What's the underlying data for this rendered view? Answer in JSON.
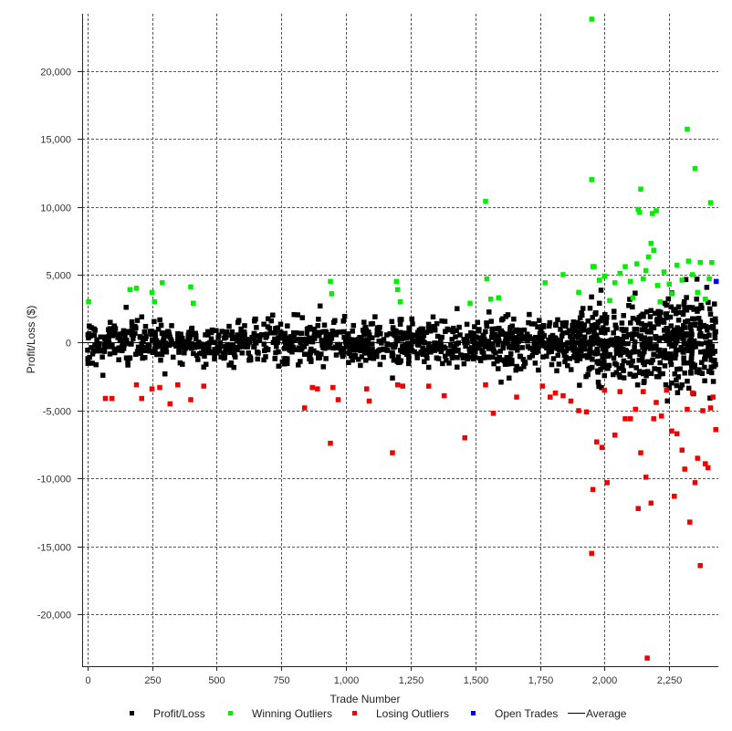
{
  "chart_data": {
    "type": "scatter",
    "xlabel": "Trade Number",
    "ylabel": "Profit/Loss ($)",
    "xlim": [
      -20,
      2440
    ],
    "ylim": [
      -23800,
      24200
    ],
    "x_ticks": [
      0,
      250,
      500,
      750,
      1000,
      1250,
      1500,
      1750,
      2000,
      2250
    ],
    "x_tick_labels": [
      "0",
      "250",
      "500",
      "750",
      "1,000",
      "1,250",
      "1,500",
      "1,750",
      "2,000",
      "2,250"
    ],
    "y_ticks": [
      20000,
      15000,
      10000,
      5000,
      0,
      -5000,
      -10000,
      -15000,
      -20000
    ],
    "y_tick_labels": [
      "20,000",
      "15,000",
      "10,000",
      "5,000",
      "0",
      "-5,000",
      "-10,000",
      "-15,000",
      "-20,000"
    ],
    "grid": true,
    "legend_position": "bottom",
    "legend": [
      {
        "label": "Profit/Loss",
        "color": "#000000",
        "marker": "square"
      },
      {
        "label": "Winning Outliers",
        "color": "#00ee00",
        "marker": "square"
      },
      {
        "label": "Losing Outliers",
        "color": "#ee0000",
        "marker": "square"
      },
      {
        "label": "Open Trades",
        "color": "#0000ee",
        "marker": "square"
      },
      {
        "label": "Average",
        "color": "#000000",
        "marker": "line"
      }
    ],
    "average": 0,
    "series": [
      {
        "name": "Profit/Loss",
        "color": "#000000",
        "bulk_bands": [
          {
            "x_range": [
              0,
              600
            ],
            "count": 330,
            "y_spread": 1300
          },
          {
            "x_range": [
              600,
              1100
            ],
            "count": 300,
            "y_spread": 1500
          },
          {
            "x_range": [
              1100,
              1550
            ],
            "count": 270,
            "y_spread": 1400
          },
          {
            "x_range": [
              1550,
              1900
            ],
            "count": 260,
            "y_spread": 1800
          },
          {
            "x_range": [
              1900,
              2200
            ],
            "count": 300,
            "y_spread": 2400
          },
          {
            "x_range": [
              2200,
              2430
            ],
            "count": 260,
            "y_spread": 3000
          }
        ],
        "points": [
          [
            60,
            -2400
          ],
          [
            150,
            2600
          ],
          [
            300,
            -2300
          ],
          [
            900,
            2700
          ],
          [
            1180,
            -2600
          ],
          [
            1430,
            2500
          ],
          [
            1600,
            -2900
          ],
          [
            1980,
            2900
          ],
          [
            2300,
            -3100
          ],
          [
            2410,
            2100
          ]
        ]
      },
      {
        "name": "Winning Outliers",
        "color": "#00ee00",
        "points": [
          [
            5,
            3000
          ],
          [
            165,
            3900
          ],
          [
            190,
            4000
          ],
          [
            250,
            3700
          ],
          [
            260,
            3000
          ],
          [
            290,
            4400
          ],
          [
            400,
            4100
          ],
          [
            410,
            2900
          ],
          [
            940,
            4500
          ],
          [
            945,
            3600
          ],
          [
            1195,
            4500
          ],
          [
            1200,
            3900
          ],
          [
            1210,
            3000
          ],
          [
            1480,
            2900
          ],
          [
            1540,
            10400
          ],
          [
            1545,
            4700
          ],
          [
            1560,
            3200
          ],
          [
            1590,
            3300
          ],
          [
            1770,
            4400
          ],
          [
            1840,
            5000
          ],
          [
            1900,
            3700
          ],
          [
            1950,
            23800
          ],
          [
            1950,
            12000
          ],
          [
            1955,
            5600
          ],
          [
            1960,
            5600
          ],
          [
            1980,
            4600
          ],
          [
            2000,
            4900
          ],
          [
            2020,
            3100
          ],
          [
            2040,
            4400
          ],
          [
            2060,
            5100
          ],
          [
            2080,
            5600
          ],
          [
            2100,
            4500
          ],
          [
            2110,
            3300
          ],
          [
            2125,
            5800
          ],
          [
            2130,
            9800
          ],
          [
            2135,
            9600
          ],
          [
            2140,
            11300
          ],
          [
            2150,
            4700
          ],
          [
            2160,
            5300
          ],
          [
            2170,
            6300
          ],
          [
            2180,
            7300
          ],
          [
            2185,
            9500
          ],
          [
            2190,
            6800
          ],
          [
            2200,
            9700
          ],
          [
            2205,
            4200
          ],
          [
            2215,
            3000
          ],
          [
            2230,
            5200
          ],
          [
            2250,
            4300
          ],
          [
            2260,
            3600
          ],
          [
            2280,
            5700
          ],
          [
            2300,
            4600
          ],
          [
            2320,
            15700
          ],
          [
            2325,
            6000
          ],
          [
            2340,
            5000
          ],
          [
            2350,
            12800
          ],
          [
            2360,
            3700
          ],
          [
            2370,
            5900
          ],
          [
            2390,
            3200
          ],
          [
            2405,
            4700
          ],
          [
            2410,
            10300
          ],
          [
            2415,
            5900
          ]
        ]
      },
      {
        "name": "Losing Outliers",
        "color": "#ee0000",
        "points": [
          [
            70,
            -4100
          ],
          [
            95,
            -4100
          ],
          [
            190,
            -3100
          ],
          [
            210,
            -4100
          ],
          [
            250,
            -3400
          ],
          [
            280,
            -3300
          ],
          [
            320,
            -4500
          ],
          [
            350,
            -3100
          ],
          [
            400,
            -4200
          ],
          [
            450,
            -3200
          ],
          [
            840,
            -4800
          ],
          [
            870,
            -3300
          ],
          [
            890,
            -3400
          ],
          [
            940,
            -7400
          ],
          [
            950,
            -3300
          ],
          [
            970,
            -4200
          ],
          [
            1080,
            -3400
          ],
          [
            1090,
            -4300
          ],
          [
            1180,
            -8100
          ],
          [
            1200,
            -3100
          ],
          [
            1220,
            -3200
          ],
          [
            1320,
            -3200
          ],
          [
            1380,
            -3900
          ],
          [
            1460,
            -7000
          ],
          [
            1540,
            -3100
          ],
          [
            1570,
            -5200
          ],
          [
            1660,
            -4000
          ],
          [
            1760,
            -3200
          ],
          [
            1790,
            -4000
          ],
          [
            1810,
            -3700
          ],
          [
            1840,
            -3900
          ],
          [
            1870,
            -4300
          ],
          [
            1900,
            -5000
          ],
          [
            1930,
            -5100
          ],
          [
            1950,
            -15500
          ],
          [
            1955,
            -10800
          ],
          [
            1970,
            -7300
          ],
          [
            1990,
            -7700
          ],
          [
            2000,
            -3500
          ],
          [
            2010,
            -10300
          ],
          [
            2040,
            -6800
          ],
          [
            2060,
            -3600
          ],
          [
            2080,
            -5600
          ],
          [
            2100,
            -5600
          ],
          [
            2120,
            -4900
          ],
          [
            2130,
            -12200
          ],
          [
            2140,
            -8100
          ],
          [
            2150,
            -3600
          ],
          [
            2160,
            -9900
          ],
          [
            2165,
            -23200
          ],
          [
            2180,
            -11800
          ],
          [
            2190,
            -5600
          ],
          [
            2200,
            -4400
          ],
          [
            2220,
            -5400
          ],
          [
            2240,
            -3500
          ],
          [
            2260,
            -6500
          ],
          [
            2270,
            -11300
          ],
          [
            2280,
            -6700
          ],
          [
            2300,
            -7900
          ],
          [
            2310,
            -9300
          ],
          [
            2320,
            -4900
          ],
          [
            2330,
            -13200
          ],
          [
            2340,
            -3700
          ],
          [
            2350,
            -10300
          ],
          [
            2360,
            -8500
          ],
          [
            2370,
            -16400
          ],
          [
            2380,
            -5000
          ],
          [
            2390,
            -8900
          ],
          [
            2400,
            -9200
          ],
          [
            2410,
            -4800
          ],
          [
            2420,
            -4000
          ],
          [
            2430,
            -6400
          ]
        ]
      },
      {
        "name": "Open Trades",
        "color": "#0000ee",
        "points": [
          [
            2432,
            4500
          ]
        ]
      }
    ]
  }
}
